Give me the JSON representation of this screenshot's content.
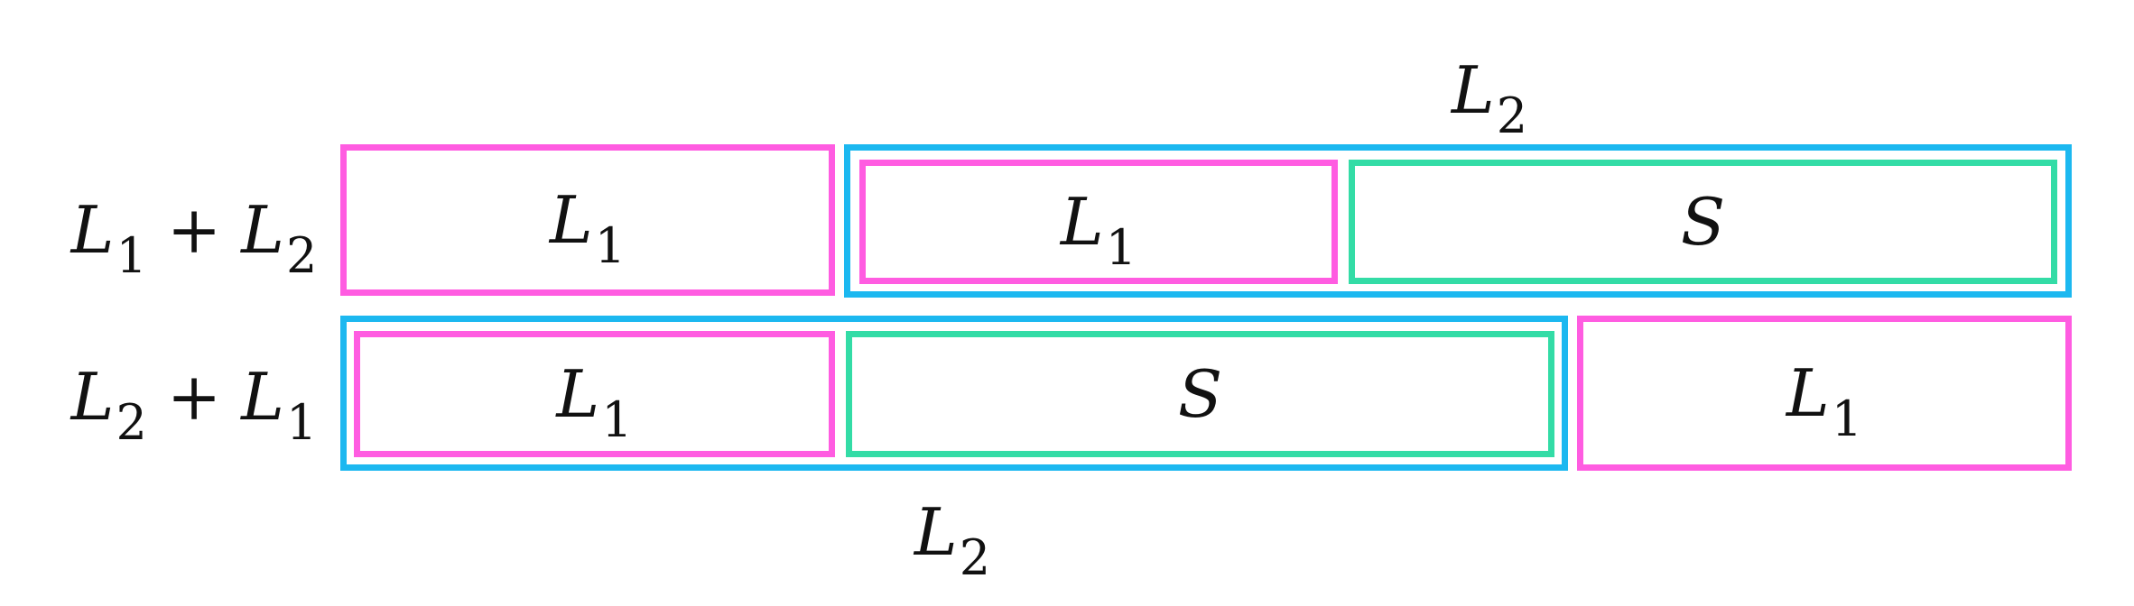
{
  "diagram": {
    "rows": [
      {
        "label": {
          "first": {
            "var": "L",
            "sub": "1"
          },
          "op": "+",
          "second": {
            "var": "L",
            "sub": "2"
          }
        },
        "top_caption": {
          "var": "L",
          "sub": "2"
        },
        "segments": [
          {
            "var": "L",
            "sub": "1",
            "color": "#ff5ce1"
          },
          {
            "var": "L",
            "sub": "1",
            "color": "#ff5ce1"
          },
          {
            "var": "S",
            "sub": "",
            "color": "#33dca6"
          }
        ],
        "group_color": "#1cb8f0"
      },
      {
        "label": {
          "first": {
            "var": "L",
            "sub": "2"
          },
          "op": "+",
          "second": {
            "var": "L",
            "sub": "1"
          }
        },
        "bottom_caption": {
          "var": "L",
          "sub": "2"
        },
        "segments": [
          {
            "var": "L",
            "sub": "1",
            "color": "#ff5ce1"
          },
          {
            "var": "S",
            "sub": "",
            "color": "#33dca6"
          },
          {
            "var": "L",
            "sub": "1",
            "color": "#ff5ce1"
          }
        ],
        "group_color": "#1cb8f0"
      }
    ]
  }
}
